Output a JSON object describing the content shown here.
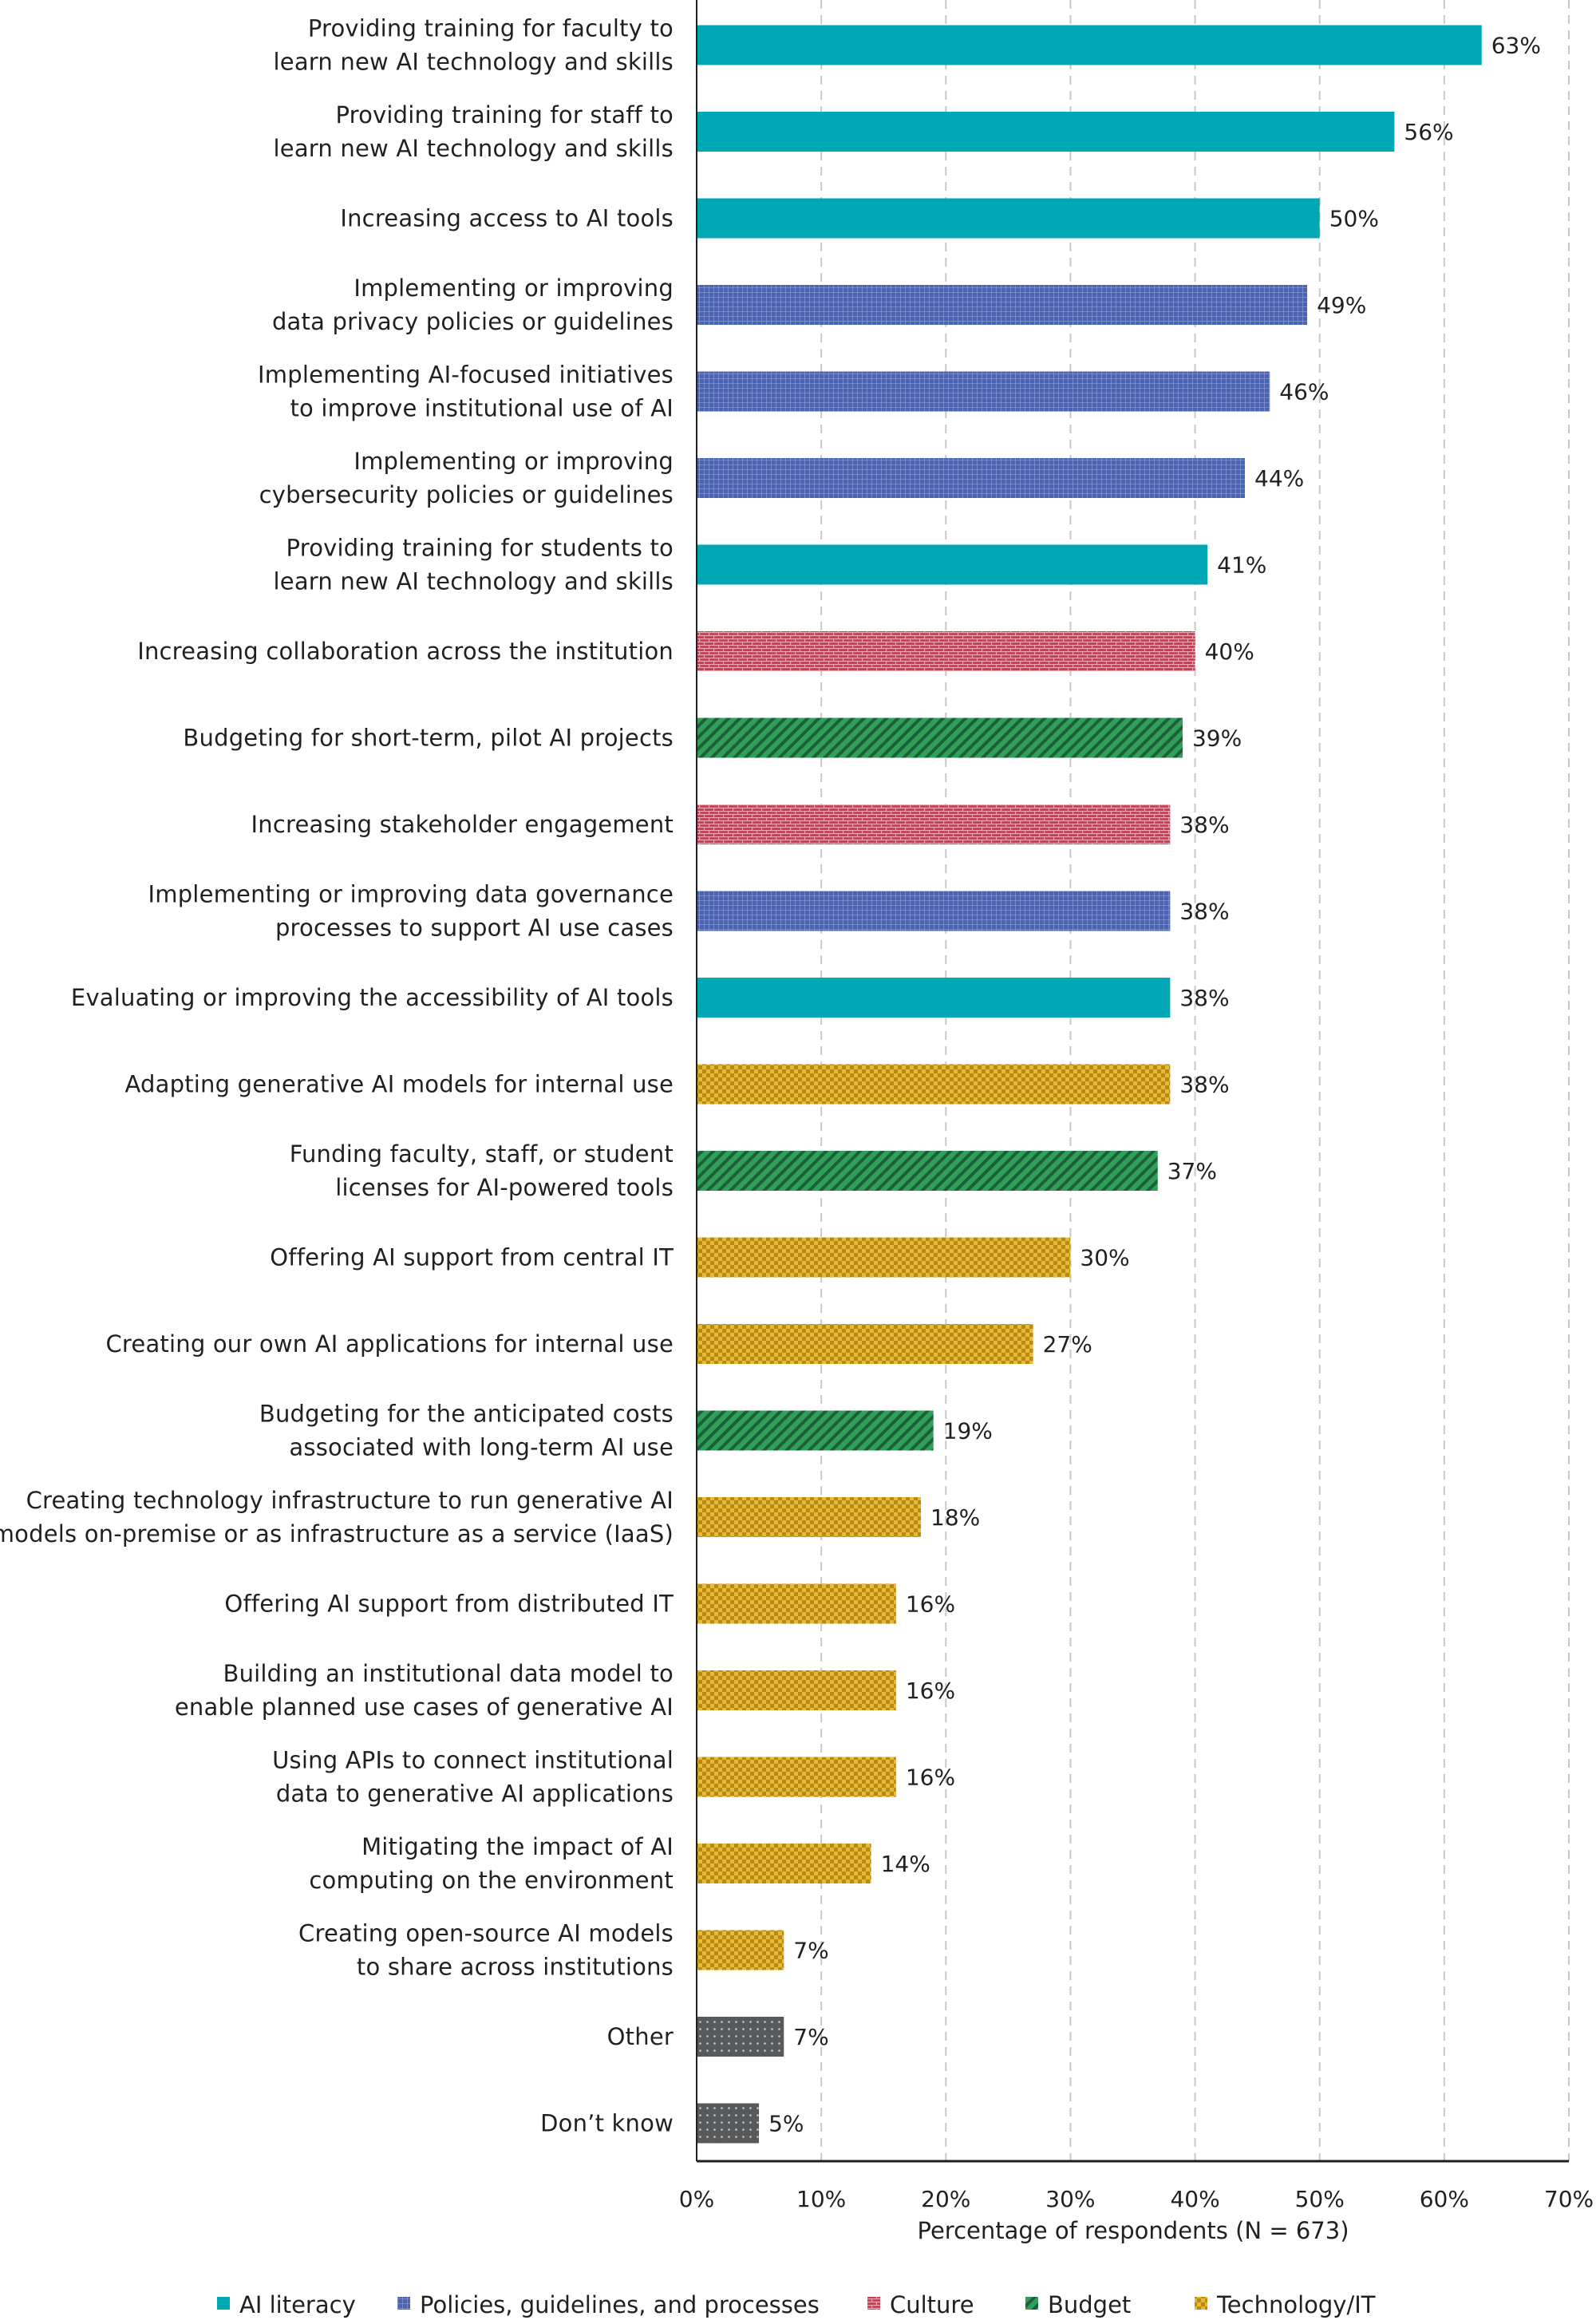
{
  "chart_data": {
    "type": "bar",
    "orientation": "horizontal",
    "xlabel": "Percentage of respondents (N = 673)",
    "xlim": [
      0,
      70
    ],
    "x_ticks": [
      "0%",
      "10%",
      "20%",
      "30%",
      "40%",
      "50%",
      "60%",
      "70%"
    ],
    "grid": "vertical dashed",
    "legend_position": "bottom",
    "legend": [
      {
        "name": "AI literacy",
        "color": "#00a8b5",
        "pattern": "solid"
      },
      {
        "name": "Policies, guidelines, and processes",
        "color": "#4a63b5",
        "pattern": "grid"
      },
      {
        "name": "Culture",
        "color": "#cf3a4f",
        "pattern": "brick"
      },
      {
        "name": "Budget",
        "color": "#2ea05a",
        "pattern": "diagonal"
      },
      {
        "name": "Technology/IT",
        "color": "#d9a520",
        "pattern": "checker"
      }
    ],
    "categories": [
      {
        "label": [
          "Providing training for faculty to",
          "learn new AI technology and skills"
        ],
        "value": 63,
        "value_label": "63%",
        "group": "AI literacy"
      },
      {
        "label": [
          "Providing training for staff to",
          "learn new AI technology and skills"
        ],
        "value": 56,
        "value_label": "56%",
        "group": "AI literacy"
      },
      {
        "label": [
          "Increasing access to AI tools"
        ],
        "value": 50,
        "value_label": "50%",
        "group": "AI literacy"
      },
      {
        "label": [
          "Implementing or improving",
          "data privacy policies or guidelines"
        ],
        "value": 49,
        "value_label": "49%",
        "group": "Policies, guidelines, and processes"
      },
      {
        "label": [
          "Implementing AI-focused initiatives",
          "to improve institutional use of AI"
        ],
        "value": 46,
        "value_label": "46%",
        "group": "Policies, guidelines, and processes"
      },
      {
        "label": [
          "Implementing or improving",
          "cybersecurity policies or guidelines"
        ],
        "value": 44,
        "value_label": "44%",
        "group": "Policies, guidelines, and processes"
      },
      {
        "label": [
          "Providing training for students to",
          "learn new AI technology and skills"
        ],
        "value": 41,
        "value_label": "41%",
        "group": "AI literacy"
      },
      {
        "label": [
          "Increasing collaboration across the institution"
        ],
        "value": 40,
        "value_label": "40%",
        "group": "Culture"
      },
      {
        "label": [
          "Budgeting for short-term, pilot AI projects"
        ],
        "value": 39,
        "value_label": "39%",
        "group": "Budget"
      },
      {
        "label": [
          "Increasing stakeholder engagement"
        ],
        "value": 38,
        "value_label": "38%",
        "group": "Culture"
      },
      {
        "label": [
          "Implementing or improving data governance",
          "processes to support AI use cases"
        ],
        "value": 38,
        "value_label": "38%",
        "group": "Policies, guidelines, and processes"
      },
      {
        "label": [
          "Evaluating or improving the accessibility of AI tools"
        ],
        "value": 38,
        "value_label": "38%",
        "group": "AI literacy"
      },
      {
        "label": [
          "Adapting generative AI models for internal use"
        ],
        "value": 38,
        "value_label": "38%",
        "group": "Technology/IT"
      },
      {
        "label": [
          "Funding faculty, staff, or student",
          "licenses for AI-powered tools"
        ],
        "value": 37,
        "value_label": "37%",
        "group": "Budget"
      },
      {
        "label": [
          "Offering AI support from central IT"
        ],
        "value": 30,
        "value_label": "30%",
        "group": "Technology/IT"
      },
      {
        "label": [
          "Creating our own AI applications for internal use"
        ],
        "value": 27,
        "value_label": "27%",
        "group": "Technology/IT"
      },
      {
        "label": [
          "Budgeting for the anticipated costs",
          "associated with long-term AI use"
        ],
        "value": 19,
        "value_label": "19%",
        "group": "Budget"
      },
      {
        "label": [
          "Creating technology infrastructure to run generative AI",
          "models on-premise or as infrastructure as a service (IaaS)"
        ],
        "value": 18,
        "value_label": "18%",
        "group": "Technology/IT"
      },
      {
        "label": [
          "Offering AI support from distributed IT"
        ],
        "value": 16,
        "value_label": "16%",
        "group": "Technology/IT"
      },
      {
        "label": [
          "Building an institutional data model to",
          "enable planned use cases of generative AI"
        ],
        "value": 16,
        "value_label": "16%",
        "group": "Technology/IT"
      },
      {
        "label": [
          "Using APIs to connect institutional",
          "data to generative AI applications"
        ],
        "value": 16,
        "value_label": "16%",
        "group": "Technology/IT"
      },
      {
        "label": [
          "Mitigating the impact of AI",
          "computing on the environment"
        ],
        "value": 14,
        "value_label": "14%",
        "group": "Technology/IT"
      },
      {
        "label": [
          "Creating open-source AI models",
          "to share across institutions"
        ],
        "value": 7,
        "value_label": "7%",
        "group": "Technology/IT"
      },
      {
        "label": [
          "Other"
        ],
        "value": 7,
        "value_label": "7%",
        "group": "Other"
      },
      {
        "label": [
          "Don’t know"
        ],
        "value": 5,
        "value_label": "5%",
        "group": "Other"
      }
    ],
    "other_color": "#58595b",
    "other_pattern": "dots"
  }
}
